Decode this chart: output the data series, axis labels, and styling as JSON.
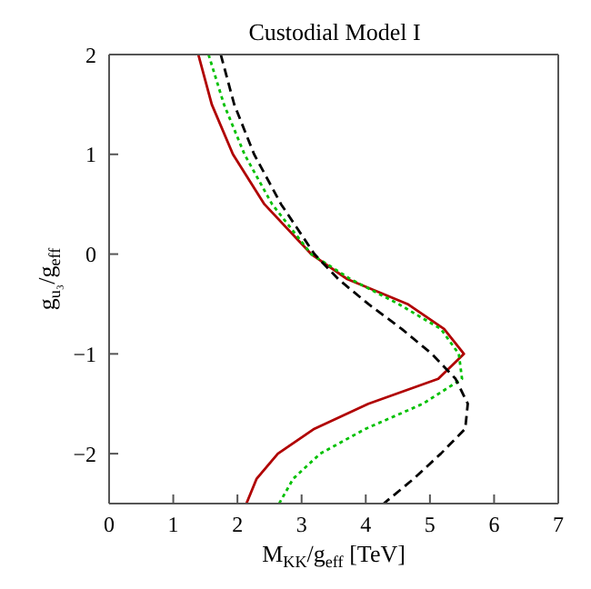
{
  "chart_data": {
    "type": "line",
    "title": "Custodial Model I",
    "xlabel": "M$_{KK}$/g$_{eff}$ [TeV]",
    "ylabel": "g$_{u₃}$/g$_{eff}$",
    "xlim": [
      0,
      7
    ],
    "ylim": [
      -2.5,
      2
    ],
    "xticks": [
      0,
      1,
      2,
      3,
      4,
      5,
      6,
      7
    ],
    "yticks": [
      -2,
      -1,
      0,
      1,
      2
    ],
    "grid": false,
    "legend": false,
    "marker": "none",
    "series": [
      {
        "color": "#b00000",
        "line_style": "solid",
        "x": [
          1.39,
          1.6,
          1.93,
          2.42,
          3.15,
          3.71,
          4.65,
          5.22,
          5.53,
          5.13,
          4.04,
          3.2,
          2.63,
          2.3,
          2.14
        ],
        "values": [
          2,
          1.5,
          1,
          0.5,
          0,
          -0.25,
          -0.5,
          -0.75,
          -1,
          -1.25,
          -1.5,
          -1.75,
          -2,
          -2.25,
          -2.5
        ]
      },
      {
        "color": "#00c000",
        "line_style": "dotted",
        "x": [
          1.55,
          1.79,
          2.11,
          2.54,
          3.15,
          3.76,
          4.51,
          5.17,
          5.45,
          5.5,
          4.89,
          4.0,
          3.29,
          2.87,
          2.65
        ],
        "values": [
          2,
          1.5,
          1,
          0.5,
          0,
          -0.25,
          -0.5,
          -0.75,
          -1,
          -1.25,
          -1.5,
          -1.75,
          -2,
          -2.25,
          -2.5
        ]
      },
      {
        "color": "#000000",
        "line_style": "dashed",
        "x": [
          1.74,
          1.95,
          2.26,
          2.68,
          3.2,
          3.57,
          4.04,
          4.56,
          5.03,
          5.4,
          5.59,
          5.55,
          5.17,
          4.75,
          4.28
        ],
        "values": [
          2,
          1.5,
          1,
          0.5,
          0,
          -0.25,
          -0.5,
          -0.75,
          -1,
          -1.25,
          -1.5,
          -1.75,
          -2,
          -2.25,
          -2.5
        ]
      }
    ]
  }
}
